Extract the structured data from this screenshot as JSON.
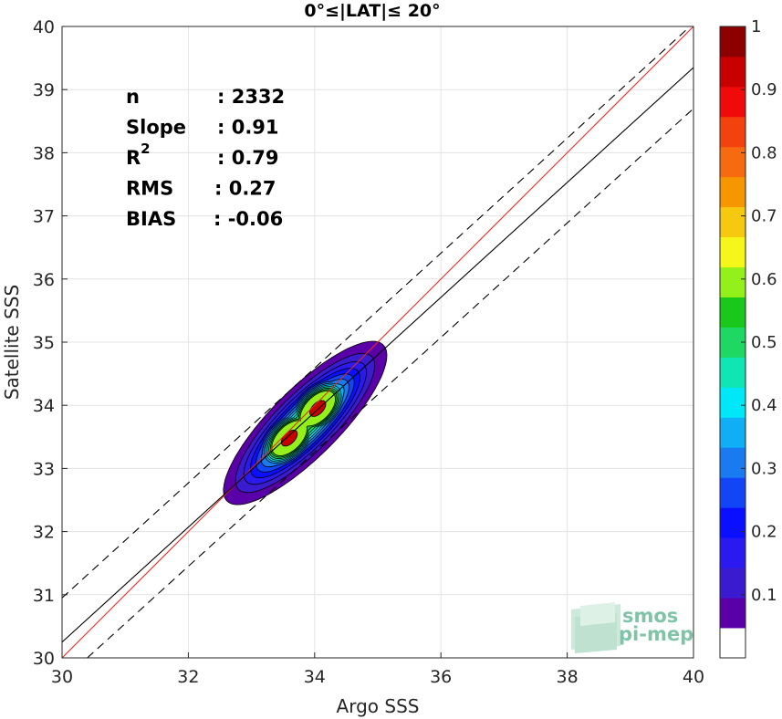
{
  "chart_data": {
    "type": "contour",
    "title": "0°≤|LAT|≤ 20°",
    "xlabel": "Argo SSS",
    "ylabel": "Satellite SSS",
    "xlim": [
      30,
      40
    ],
    "ylim": [
      30,
      40
    ],
    "x_ticks": [
      "30",
      "32",
      "34",
      "36",
      "38",
      "40"
    ],
    "y_ticks": [
      "30",
      "31",
      "32",
      "33",
      "34",
      "35",
      "36",
      "37",
      "38",
      "39",
      "40"
    ],
    "grid": true,
    "stats": [
      {
        "key": "n",
        "value": ": 2332"
      },
      {
        "key": "Slope",
        "value": ": 0.91"
      },
      {
        "key": "R",
        "sup": "2",
        "value": ": 0.79"
      },
      {
        "key": "RMS",
        "value": ": 0.27"
      },
      {
        "key": "BIAS",
        "value": ": -0.06"
      }
    ],
    "lines": [
      {
        "name": "one-to-one",
        "color": "#e8281e",
        "dash": false,
        "points": [
          [
            30,
            30
          ],
          [
            40,
            40
          ]
        ]
      },
      {
        "name": "regression",
        "color": "#000000",
        "dash": false,
        "points": [
          [
            30,
            30.25
          ],
          [
            40,
            39.35
          ]
        ]
      },
      {
        "name": "upper-bound",
        "color": "#000000",
        "dash": true,
        "points": [
          [
            30,
            30.95
          ],
          [
            40,
            40.05
          ]
        ]
      },
      {
        "name": "lower-bound",
        "color": "#000000",
        "dash": true,
        "points": [
          [
            30.4,
            30
          ],
          [
            40,
            38.7
          ]
        ]
      }
    ],
    "density_clusters": [
      {
        "x": 33.6,
        "y": 33.48
      },
      {
        "x": 34.05,
        "y": 33.95
      }
    ],
    "density_levels": [
      0.05,
      0.1,
      0.15,
      0.2,
      0.25,
      0.3,
      0.35,
      0.4,
      0.45,
      0.5,
      0.55,
      0.6,
      0.65,
      0.7,
      0.75,
      0.8,
      0.85,
      0.9,
      0.95
    ],
    "colorbar": {
      "range": [
        0,
        1
      ],
      "ticks": [
        "0.1",
        "0.2",
        "0.3",
        "0.4",
        "0.5",
        "0.6",
        "0.7",
        "0.8",
        "0.9",
        "1"
      ],
      "colors": [
        "#ffffff",
        "#5a00a8",
        "#3a1bd0",
        "#2a1af0",
        "#0a10ff",
        "#1245f5",
        "#1a7af0",
        "#10aef5",
        "#00e8f8",
        "#10e6b4",
        "#1fd864",
        "#19c81a",
        "#94f01a",
        "#f6f61a",
        "#f6c810",
        "#f69600",
        "#f66a10",
        "#f4420e",
        "#f00a0a",
        "#c80000",
        "#8c0000"
      ]
    }
  },
  "watermark": {
    "line1": "smos",
    "line2": "pi-mep"
  }
}
